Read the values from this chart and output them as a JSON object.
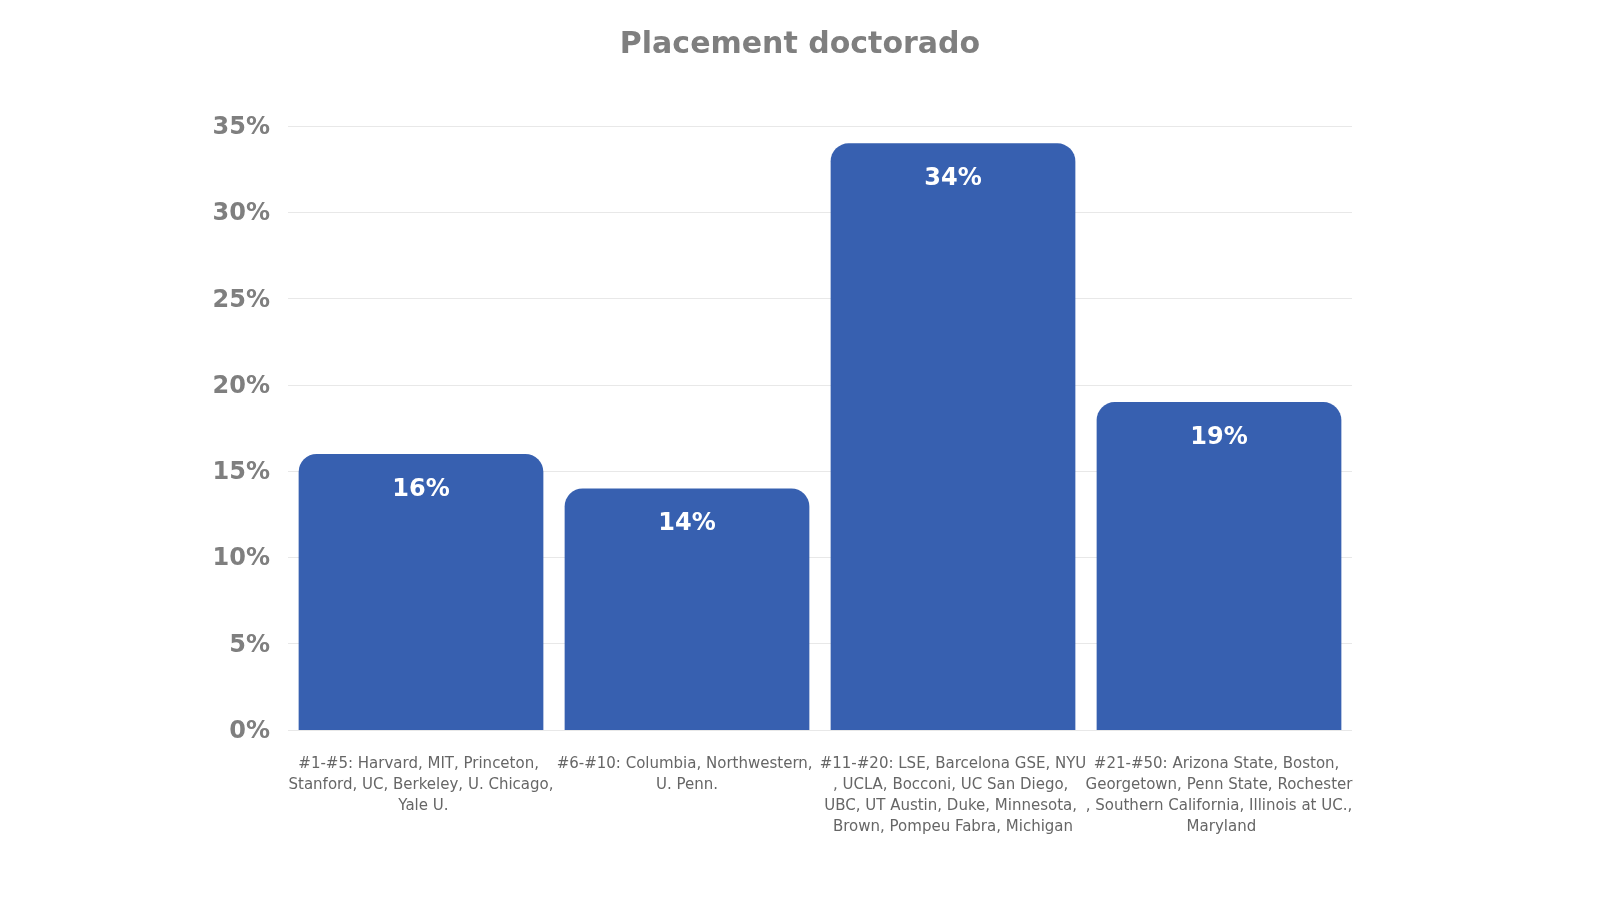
{
  "chart_data": {
    "type": "bar",
    "title": "Placement doctorado",
    "categories": [
      "#1-#5: Harvard, MIT, Princeton, Stanford, UC, Berkeley, U. Chicago, Yale U.",
      "#6-#10: Columbia, Northwestern, U. Penn.",
      "#11-#20: LSE, Barcelona GSE, NYU, UCLA, Bocconi, UC San Diego, UBC, UT Austin, Duke, Minnesota, Brown, Pompeu Fabra, Michigan",
      "#21-#50: Arizona State, Boston, Georgetown, Penn State, Rochester, Southern California, Illinois at UC., Maryland"
    ],
    "values": [
      16,
      14,
      34,
      19
    ],
    "value_labels": [
      "16%",
      "14%",
      "34%",
      "19%"
    ],
    "color": "#3760b0",
    "ylim": [
      0,
      35
    ],
    "yticks": [
      {
        "value": 0,
        "label": "0%"
      },
      {
        "value": 5,
        "label": "5%"
      },
      {
        "value": 10,
        "label": "10%"
      },
      {
        "value": 15,
        "label": "15%"
      },
      {
        "value": 20,
        "label": "20%"
      },
      {
        "value": 25,
        "label": "25%"
      },
      {
        "value": 30,
        "label": "30%"
      },
      {
        "value": 35,
        "label": "35%"
      }
    ],
    "grid": "y"
  }
}
